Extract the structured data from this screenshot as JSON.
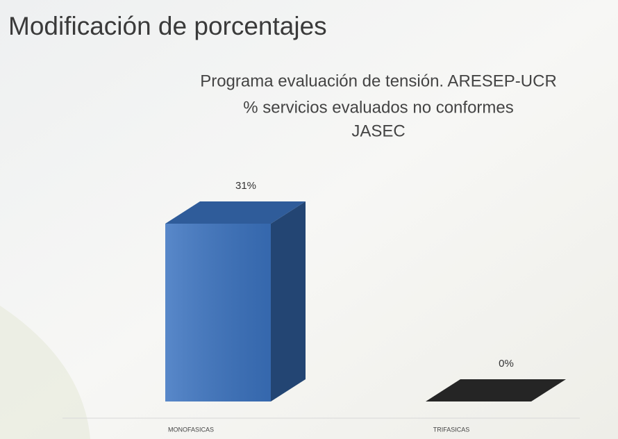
{
  "slide_title": "Modificación de porcentajes",
  "chart_data": {
    "type": "bar3d",
    "title": "Programa evaluación de tensión. ARESEP-UCR",
    "subtitle": [
      "% servicios evaluados no conformes",
      "JASEC"
    ],
    "categories": [
      "MONOFASICAS",
      "TRIFASICAS"
    ],
    "values": [
      31,
      0
    ],
    "value_labels": [
      "31%",
      "0%"
    ],
    "colors": [
      "#3b73c0",
      "#2e2e2e"
    ]
  }
}
